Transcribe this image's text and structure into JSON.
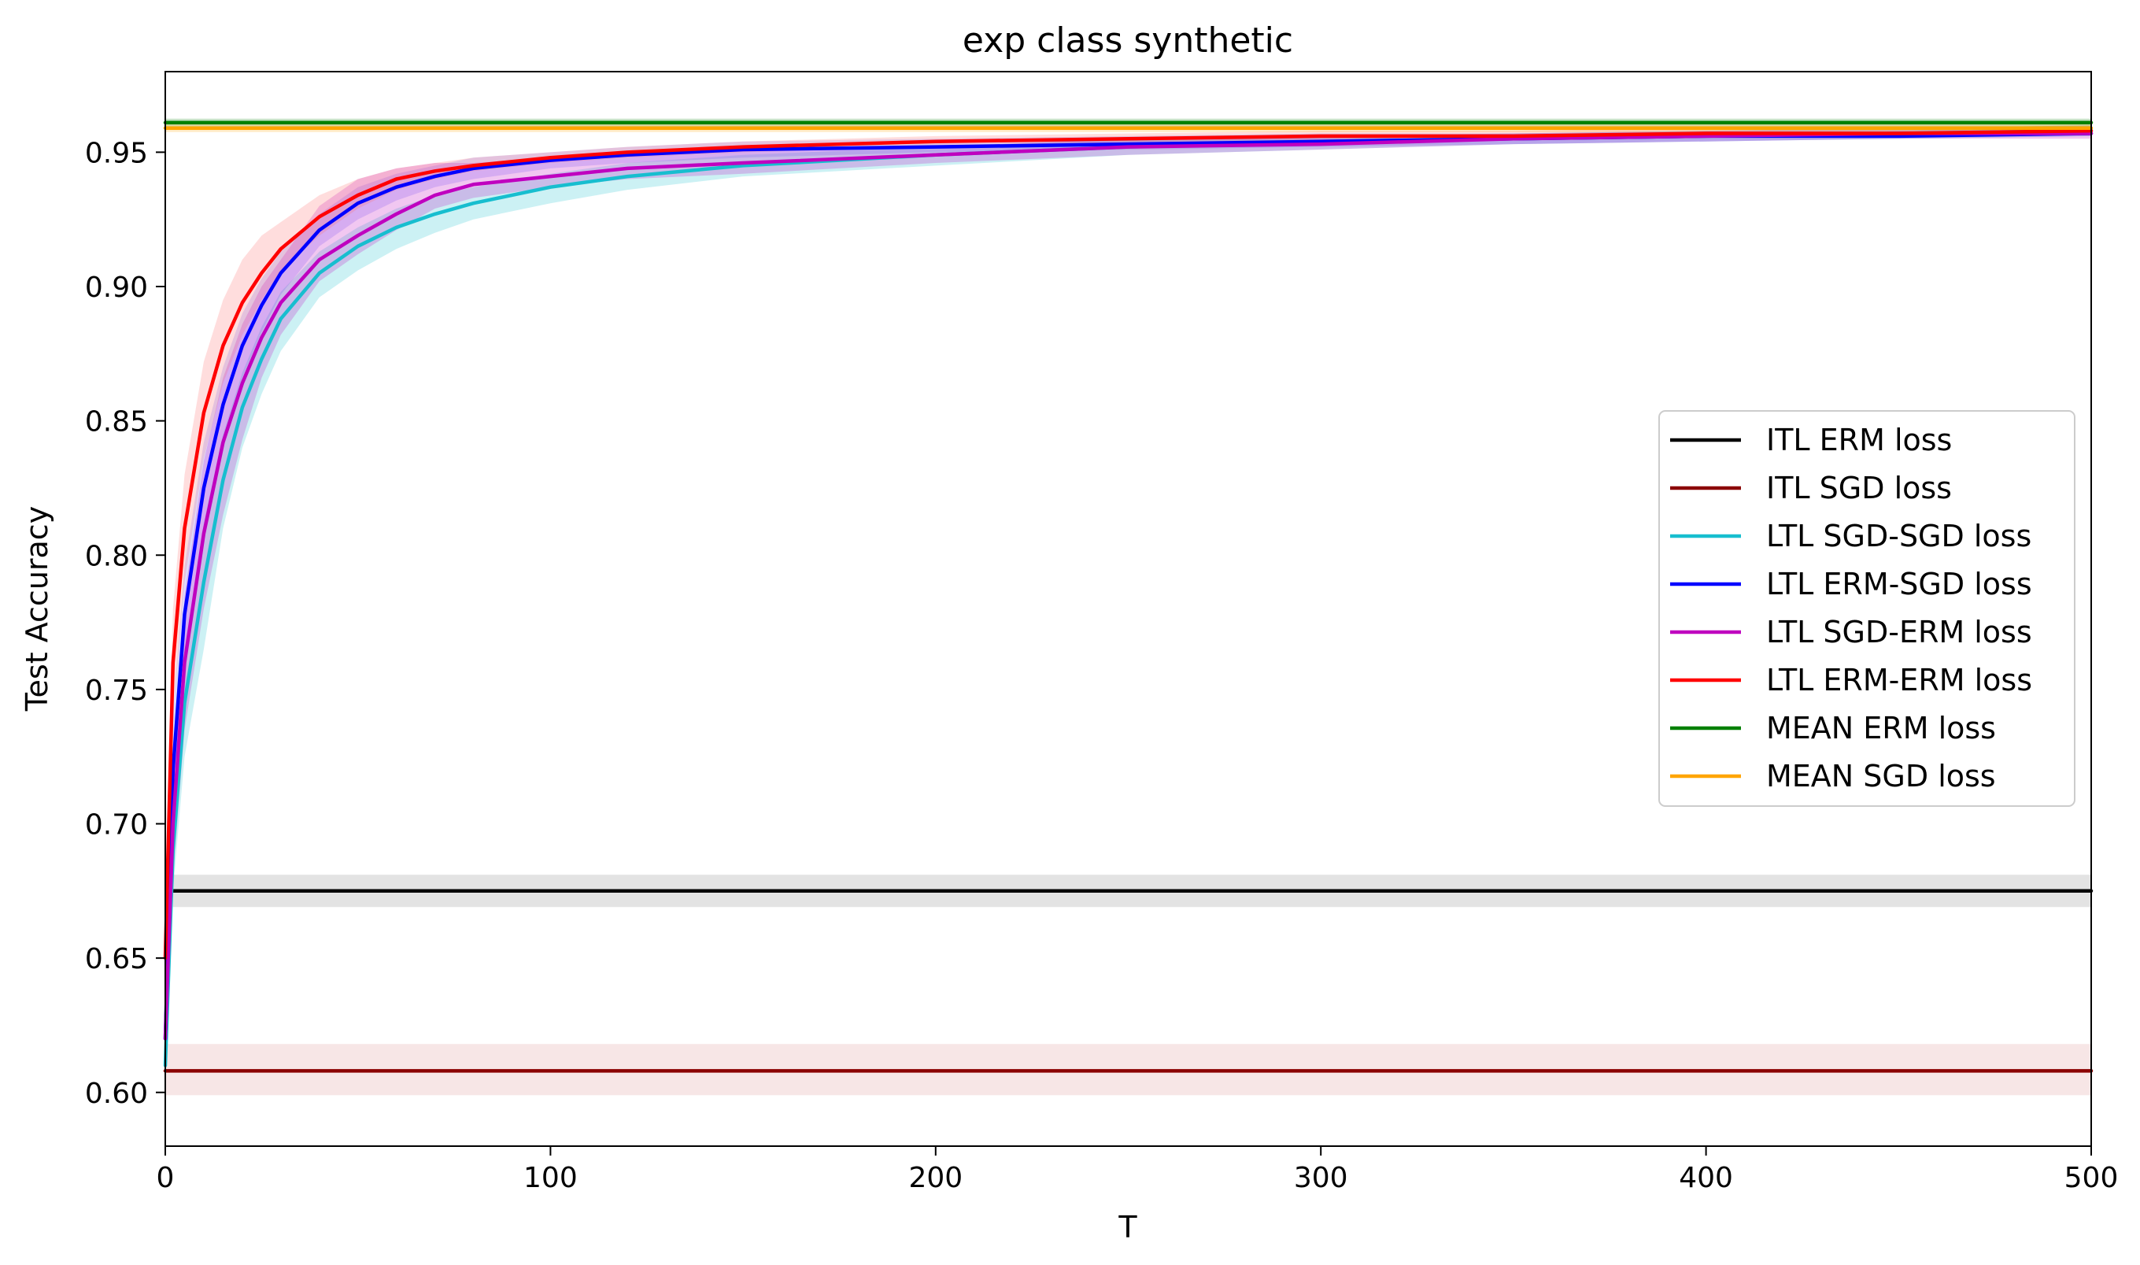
{
  "chart_data": {
    "type": "line",
    "title": "exp class synthetic",
    "xlabel": "T",
    "ylabel": "Test Accuracy",
    "xlim": [
      0,
      500
    ],
    "ylim": [
      0.58,
      0.98
    ],
    "xticks": [
      0,
      100,
      200,
      300,
      400,
      500
    ],
    "yticks": [
      0.6,
      0.65,
      0.7,
      0.75,
      0.8,
      0.85,
      0.9,
      0.95
    ],
    "xtick_labels": [
      "0",
      "100",
      "200",
      "300",
      "400",
      "500"
    ],
    "ytick_labels": [
      "0.60",
      "0.65",
      "0.70",
      "0.75",
      "0.80",
      "0.85",
      "0.90",
      "0.95"
    ],
    "grid": false,
    "legend_position": "center-right",
    "series": [
      {
        "name": "ITL ERM loss",
        "color": "#000000",
        "band_color": "#808080",
        "x": [
          2,
          500
        ],
        "y": [
          0.675,
          0.675
        ],
        "lower": [
          0.669,
          0.669
        ],
        "upper": [
          0.681,
          0.681
        ]
      },
      {
        "name": "ITL SGD loss",
        "color": "#8b0000",
        "band_color": "#d98c8c",
        "x": [
          0,
          500
        ],
        "y": [
          0.608,
          0.608
        ],
        "lower": [
          0.599,
          0.599
        ],
        "upper": [
          0.618,
          0.618
        ]
      },
      {
        "name": "LTL SGD-SGD loss",
        "color": "#17becf",
        "band_color": "#17becf",
        "x": [
          0,
          2,
          5,
          10,
          15,
          20,
          25,
          30,
          40,
          50,
          60,
          70,
          80,
          100,
          120,
          150,
          200,
          250,
          300,
          350,
          400,
          450,
          500
        ],
        "y": [
          0.61,
          0.69,
          0.745,
          0.79,
          0.828,
          0.855,
          0.873,
          0.888,
          0.905,
          0.915,
          0.922,
          0.927,
          0.931,
          0.937,
          0.941,
          0.945,
          0.949,
          0.952,
          0.954,
          0.955,
          0.956,
          0.957,
          0.958
        ],
        "lower": [
          0.6,
          0.675,
          0.725,
          0.765,
          0.81,
          0.84,
          0.86,
          0.876,
          0.896,
          0.906,
          0.914,
          0.92,
          0.925,
          0.931,
          0.936,
          0.941,
          0.945,
          0.949,
          0.951,
          0.953,
          0.954,
          0.955,
          0.956
        ],
        "upper": [
          0.62,
          0.705,
          0.765,
          0.812,
          0.845,
          0.868,
          0.885,
          0.898,
          0.913,
          0.922,
          0.929,
          0.934,
          0.937,
          0.942,
          0.946,
          0.949,
          0.952,
          0.955,
          0.956,
          0.957,
          0.958,
          0.959,
          0.96
        ]
      },
      {
        "name": "LTL ERM-SGD loss",
        "color": "#0000ff",
        "band_color": "#6464ff",
        "x": [
          0,
          2,
          5,
          10,
          15,
          20,
          25,
          30,
          40,
          50,
          60,
          70,
          80,
          100,
          120,
          150,
          200,
          250,
          300,
          350,
          400,
          450,
          500
        ],
        "y": [
          0.62,
          0.72,
          0.778,
          0.825,
          0.856,
          0.878,
          0.893,
          0.905,
          0.921,
          0.931,
          0.937,
          0.941,
          0.944,
          0.947,
          0.949,
          0.951,
          0.952,
          0.953,
          0.954,
          0.955,
          0.956,
          0.956,
          0.957
        ],
        "lower": [
          0.61,
          0.7,
          0.76,
          0.808,
          0.842,
          0.866,
          0.883,
          0.897,
          0.915,
          0.925,
          0.932,
          0.937,
          0.94,
          0.944,
          0.946,
          0.948,
          0.95,
          0.951,
          0.952,
          0.953,
          0.954,
          0.955,
          0.956
        ],
        "upper": [
          0.63,
          0.74,
          0.796,
          0.842,
          0.87,
          0.89,
          0.903,
          0.913,
          0.927,
          0.937,
          0.942,
          0.945,
          0.948,
          0.95,
          0.952,
          0.954,
          0.955,
          0.956,
          0.957,
          0.957,
          0.958,
          0.958,
          0.959
        ]
      },
      {
        "name": "LTL SGD-ERM loss",
        "color": "#bf00bf",
        "band_color": "#bf00bf",
        "x": [
          0,
          2,
          5,
          10,
          15,
          20,
          25,
          30,
          40,
          50,
          60,
          70,
          80,
          100,
          120,
          150,
          200,
          250,
          300,
          350,
          400,
          450,
          500
        ],
        "y": [
          0.62,
          0.7,
          0.76,
          0.808,
          0.842,
          0.864,
          0.881,
          0.894,
          0.91,
          0.919,
          0.927,
          0.934,
          0.938,
          0.941,
          0.944,
          0.946,
          0.949,
          0.952,
          0.953,
          0.955,
          0.956,
          0.957,
          0.957
        ],
        "lower": [
          0.605,
          0.68,
          0.735,
          0.78,
          0.815,
          0.843,
          0.866,
          0.882,
          0.902,
          0.912,
          0.921,
          0.929,
          0.933,
          0.937,
          0.94,
          0.942,
          0.946,
          0.949,
          0.951,
          0.953,
          0.954,
          0.955,
          0.955
        ],
        "upper": [
          0.635,
          0.72,
          0.785,
          0.835,
          0.866,
          0.886,
          0.9,
          0.91,
          0.93,
          0.94,
          0.944,
          0.946,
          0.946,
          0.948,
          0.95,
          0.951,
          0.952,
          0.955,
          0.956,
          0.957,
          0.958,
          0.959,
          0.959
        ]
      },
      {
        "name": "LTL ERM-ERM loss",
        "color": "#ff0000",
        "band_color": "#ff6464",
        "x": [
          0,
          2,
          5,
          10,
          15,
          20,
          25,
          30,
          40,
          50,
          60,
          70,
          80,
          100,
          120,
          150,
          200,
          250,
          300,
          350,
          400,
          450,
          500
        ],
        "y": [
          0.65,
          0.76,
          0.81,
          0.853,
          0.878,
          0.894,
          0.905,
          0.914,
          0.926,
          0.934,
          0.94,
          0.943,
          0.945,
          0.948,
          0.95,
          0.952,
          0.954,
          0.955,
          0.956,
          0.956,
          0.957,
          0.957,
          0.958
        ],
        "lower": [
          0.64,
          0.74,
          0.79,
          0.836,
          0.864,
          0.882,
          0.895,
          0.906,
          0.919,
          0.929,
          0.936,
          0.94,
          0.943,
          0.946,
          0.948,
          0.95,
          0.952,
          0.953,
          0.954,
          0.955,
          0.956,
          0.956,
          0.957
        ],
        "upper": [
          0.66,
          0.78,
          0.83,
          0.872,
          0.895,
          0.91,
          0.919,
          0.924,
          0.934,
          0.94,
          0.944,
          0.946,
          0.948,
          0.95,
          0.952,
          0.954,
          0.956,
          0.957,
          0.958,
          0.958,
          0.959,
          0.959,
          0.96
        ]
      },
      {
        "name": "MEAN ERM loss",
        "color": "#008000",
        "band_color": "#008000",
        "x": [
          0,
          500
        ],
        "y": [
          0.961,
          0.961
        ],
        "lower": [
          0.9595,
          0.9595
        ],
        "upper": [
          0.9625,
          0.9625
        ]
      },
      {
        "name": "MEAN SGD loss",
        "color": "#ffa500",
        "band_color": "#ffa500",
        "x": [
          0,
          500
        ],
        "y": [
          0.959,
          0.959
        ],
        "lower": [
          0.9575,
          0.9575
        ],
        "upper": [
          0.9605,
          0.9605
        ]
      }
    ]
  }
}
